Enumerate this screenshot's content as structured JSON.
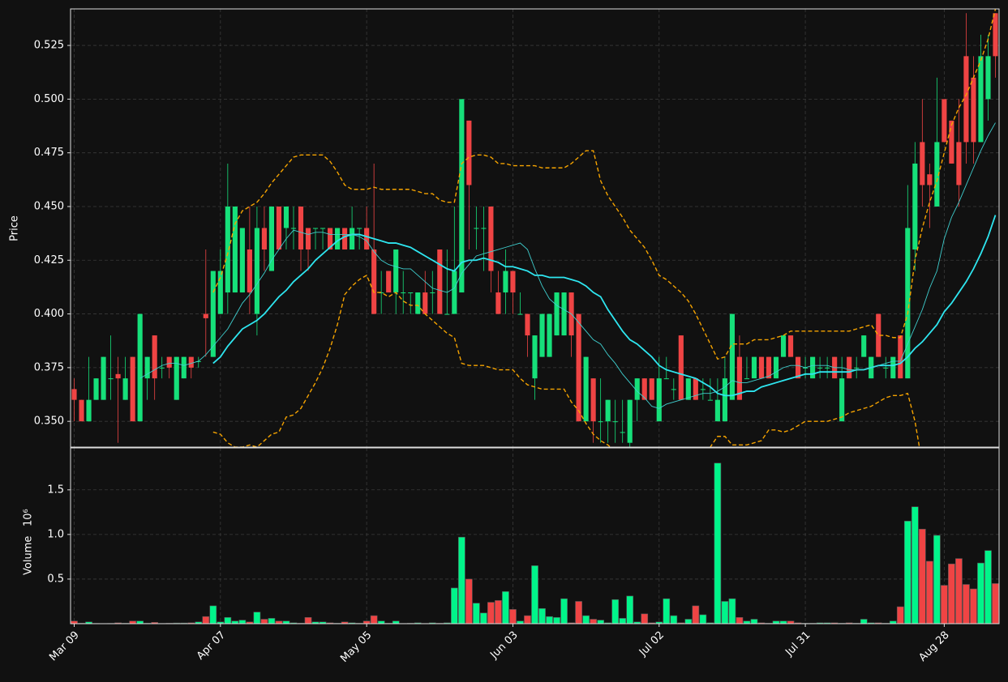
{
  "chart_data": {
    "type": "candlestick",
    "ylabel": "Price",
    "volume_ylabel": "Volume",
    "volume_offset": "10⁶",
    "grid": true,
    "up_color": "#16e07a",
    "down_color": "#ef4444",
    "volume_up_color": "#00f58a",
    "ylim": [
      0.338,
      0.542
    ],
    "yticks": [
      {
        "value": 0.35,
        "label": "0.350"
      },
      0.375,
      {
        "value": 0.4,
        "label": "0.400"
      },
      0.425,
      {
        "value": 0.45,
        "label": "0.450"
      },
      0.475,
      {
        "value": 0.5,
        "label": "0.500"
      },
      0.525
    ],
    "volume_ylim": [
      0,
      1970000
    ],
    "volume_yticks": [
      {
        "value": 500000,
        "label": "0.5"
      },
      {
        "value": 1000000,
        "label": "1.0"
      },
      {
        "value": 1500000,
        "label": "1.5"
      }
    ],
    "categories": [
      "Mar 09",
      null,
      null,
      null,
      null,
      null,
      null,
      null,
      null,
      null,
      null,
      null,
      null,
      null,
      null,
      null,
      null,
      null,
      null,
      null,
      "Apr 07",
      null,
      null,
      null,
      null,
      null,
      null,
      null,
      null,
      null,
      null,
      null,
      null,
      null,
      null,
      null,
      null,
      null,
      null,
      null,
      "May 05",
      null,
      null,
      null,
      null,
      null,
      null,
      null,
      null,
      null,
      null,
      null,
      null,
      null,
      null,
      null,
      null,
      null,
      null,
      null,
      "Jun 03",
      null,
      null,
      null,
      null,
      null,
      null,
      null,
      null,
      null,
      null,
      null,
      null,
      null,
      null,
      null,
      null,
      null,
      null,
      null,
      "Jul 02",
      null,
      null,
      null,
      null,
      null,
      null,
      null,
      null,
      null,
      null,
      null,
      null,
      null,
      null,
      null,
      null,
      null,
      null,
      null,
      "Jul 31",
      null,
      null,
      null,
      null,
      null,
      null,
      null,
      null,
      null,
      null,
      null,
      null,
      null,
      null,
      null,
      null,
      null,
      null,
      "Aug 28",
      null,
      null,
      null,
      null,
      null,
      null,
      null
    ],
    "open": [
      0.365,
      0.36,
      0.35,
      0.36,
      0.36,
      0.37,
      0.372,
      0.36,
      0.38,
      0.35,
      0.37,
      0.39,
      0.375,
      0.38,
      0.36,
      0.37,
      0.38,
      0.378,
      0.4,
      0.38,
      0.4,
      0.41,
      0.41,
      0.41,
      0.43,
      0.4,
      0.44,
      0.42,
      0.45,
      0.44,
      0.44,
      0.45,
      0.44,
      0.44,
      0.44,
      0.44,
      0.43,
      0.44,
      0.43,
      0.44,
      0.44,
      0.43,
      0.41,
      0.42,
      0.41,
      0.41,
      0.41,
      0.4,
      0.41,
      0.41,
      0.43,
      0.4,
      0.4,
      0.41,
      0.49,
      0.44,
      0.44,
      0.45,
      0.41,
      0.41,
      0.42,
      0.4,
      0.4,
      0.37,
      0.38,
      0.38,
      0.39,
      0.39,
      0.41,
      0.4,
      0.35,
      0.37,
      0.35,
      0.35,
      0.35,
      0.345,
      0.34,
      0.36,
      0.37,
      0.37,
      0.35,
      0.37,
      0.365,
      0.39,
      0.36,
      0.37,
      0.365,
      0.36,
      0.35,
      0.35,
      0.36,
      0.38,
      0.37,
      0.37,
      0.38,
      0.38,
      0.37,
      0.38,
      0.39,
      0.38,
      0.375,
      0.37,
      0.375,
      0.375,
      0.38,
      0.35,
      0.38,
      0.375,
      0.38,
      0.37,
      0.4,
      0.375,
      0.37,
      0.39,
      0.37,
      0.43,
      0.48,
      0.465,
      0.45,
      0.5,
      0.49,
      0.48,
      0.52,
      0.51,
      0.48,
      0.5,
      0.54
    ],
    "high": [
      0.37,
      0.36,
      0.38,
      0.37,
      0.38,
      0.39,
      0.38,
      0.38,
      0.38,
      0.4,
      0.38,
      0.39,
      0.38,
      0.38,
      0.38,
      0.38,
      0.38,
      0.38,
      0.43,
      0.42,
      0.43,
      0.47,
      0.45,
      0.44,
      0.45,
      0.45,
      0.45,
      0.45,
      0.45,
      0.45,
      0.45,
      0.45,
      0.44,
      0.44,
      0.44,
      0.44,
      0.44,
      0.44,
      0.45,
      0.44,
      0.45,
      0.47,
      0.42,
      0.42,
      0.43,
      0.42,
      0.41,
      0.41,
      0.42,
      0.42,
      0.43,
      0.43,
      0.45,
      0.5,
      0.49,
      0.45,
      0.45,
      0.45,
      0.42,
      0.43,
      0.42,
      0.41,
      0.4,
      0.39,
      0.4,
      0.4,
      0.41,
      0.41,
      0.41,
      0.4,
      0.38,
      0.37,
      0.37,
      0.36,
      0.36,
      0.36,
      0.36,
      0.37,
      0.37,
      0.37,
      0.38,
      0.38,
      0.37,
      0.39,
      0.37,
      0.37,
      0.37,
      0.37,
      0.37,
      0.38,
      0.4,
      0.39,
      0.38,
      0.38,
      0.38,
      0.38,
      0.38,
      0.39,
      0.39,
      0.38,
      0.38,
      0.38,
      0.38,
      0.38,
      0.38,
      0.38,
      0.38,
      0.38,
      0.39,
      0.38,
      0.4,
      0.38,
      0.38,
      0.39,
      0.46,
      0.48,
      0.5,
      0.47,
      0.51,
      0.5,
      0.49,
      0.5,
      0.54,
      0.52,
      0.53,
      0.53,
      0.54
    ],
    "low": [
      0.35,
      0.35,
      0.35,
      0.36,
      0.36,
      0.36,
      0.34,
      0.36,
      0.35,
      0.35,
      0.36,
      0.36,
      0.37,
      0.37,
      0.36,
      0.37,
      0.37,
      0.375,
      0.38,
      0.38,
      0.4,
      0.4,
      0.41,
      0.41,
      0.4,
      0.39,
      0.42,
      0.42,
      0.43,
      0.43,
      0.43,
      0.42,
      0.42,
      0.43,
      0.43,
      0.43,
      0.43,
      0.43,
      0.43,
      0.43,
      0.43,
      0.4,
      0.4,
      0.41,
      0.4,
      0.4,
      0.4,
      0.4,
      0.4,
      0.4,
      0.4,
      0.4,
      0.4,
      0.41,
      0.43,
      0.43,
      0.42,
      0.41,
      0.4,
      0.4,
      0.4,
      0.4,
      0.38,
      0.36,
      0.38,
      0.38,
      0.39,
      0.39,
      0.38,
      0.35,
      0.35,
      0.34,
      0.34,
      0.34,
      0.34,
      0.34,
      0.33,
      0.35,
      0.36,
      0.36,
      0.35,
      0.37,
      0.36,
      0.36,
      0.36,
      0.36,
      0.36,
      0.36,
      0.35,
      0.35,
      0.36,
      0.36,
      0.37,
      0.37,
      0.37,
      0.37,
      0.37,
      0.38,
      0.38,
      0.37,
      0.37,
      0.37,
      0.37,
      0.37,
      0.37,
      0.35,
      0.37,
      0.37,
      0.38,
      0.37,
      0.38,
      0.37,
      0.37,
      0.37,
      0.37,
      0.42,
      0.45,
      0.44,
      0.45,
      0.48,
      0.47,
      0.45,
      0.47,
      0.47,
      0.48,
      0.49,
      0.51
    ],
    "close": [
      0.36,
      0.35,
      0.36,
      0.37,
      0.38,
      0.37,
      0.37,
      0.37,
      0.35,
      0.4,
      0.38,
      0.37,
      0.375,
      0.375,
      0.38,
      0.38,
      0.375,
      0.378,
      0.398,
      0.42,
      0.42,
      0.45,
      0.45,
      0.44,
      0.41,
      0.44,
      0.43,
      0.45,
      0.43,
      0.45,
      0.44,
      0.43,
      0.43,
      0.44,
      0.44,
      0.43,
      0.44,
      0.43,
      0.44,
      0.44,
      0.43,
      0.4,
      0.41,
      0.41,
      0.43,
      0.41,
      0.41,
      0.41,
      0.4,
      0.41,
      0.4,
      0.4,
      0.42,
      0.5,
      0.46,
      0.44,
      0.44,
      0.42,
      0.4,
      0.42,
      0.41,
      0.4,
      0.39,
      0.39,
      0.4,
      0.4,
      0.41,
      0.41,
      0.39,
      0.35,
      0.38,
      0.35,
      0.35,
      0.36,
      0.35,
      0.345,
      0.36,
      0.37,
      0.36,
      0.36,
      0.37,
      0.37,
      0.365,
      0.36,
      0.37,
      0.36,
      0.365,
      0.36,
      0.36,
      0.37,
      0.4,
      0.36,
      0.37,
      0.38,
      0.37,
      0.37,
      0.38,
      0.39,
      0.38,
      0.37,
      0.375,
      0.38,
      0.375,
      0.375,
      0.37,
      0.37,
      0.37,
      0.375,
      0.39,
      0.38,
      0.38,
      0.375,
      0.38,
      0.37,
      0.44,
      0.47,
      0.46,
      0.46,
      0.48,
      0.48,
      0.47,
      0.46,
      0.48,
      0.48,
      0.52,
      0.52,
      0.52
    ],
    "volume": [
      30000,
      5000,
      20000,
      3000,
      2000,
      3000,
      10000,
      5000,
      30000,
      30000,
      5000,
      15000,
      3000,
      5000,
      8000,
      8000,
      10000,
      20000,
      80000,
      200000,
      20000,
      70000,
      30000,
      40000,
      20000,
      130000,
      50000,
      60000,
      30000,
      30000,
      10000,
      5000,
      70000,
      20000,
      20000,
      10000,
      5000,
      20000,
      10000,
      5000,
      30000,
      90000,
      30000,
      5000,
      30000,
      3000,
      5000,
      10000,
      3000,
      10000,
      5000,
      10000,
      400000,
      970000,
      500000,
      230000,
      120000,
      240000,
      260000,
      360000,
      160000,
      30000,
      90000,
      650000,
      170000,
      80000,
      70000,
      280000,
      10000,
      250000,
      90000,
      50000,
      40000,
      10000,
      270000,
      60000,
      310000,
      20000,
      110000,
      10000,
      20000,
      280000,
      90000,
      10000,
      50000,
      200000,
      100000,
      10000,
      1800000,
      250000,
      280000,
      70000,
      30000,
      50000,
      10000,
      5000,
      30000,
      30000,
      30000,
      10000,
      5000,
      5000,
      10000,
      10000,
      10000,
      5000,
      10000,
      5000,
      50000,
      10000,
      10000,
      5000,
      30000,
      190000,
      1150000,
      1310000,
      1060000,
      700000,
      990000,
      430000,
      670000,
      730000,
      440000,
      390000,
      680000,
      820000,
      450000
    ],
    "overlays": [
      {
        "color": "#2ee6f0",
        "linewidth": 1.8,
        "dash": false,
        "values": [
          null,
          null,
          null,
          null,
          null,
          null,
          null,
          null,
          null,
          null,
          null,
          null,
          null,
          null,
          null,
          null,
          null,
          null,
          null,
          0.377,
          0.38,
          0.385,
          0.389,
          0.393,
          0.395,
          0.397,
          0.4,
          0.404,
          0.408,
          0.411,
          0.415,
          0.418,
          0.421,
          0.425,
          0.428,
          0.431,
          0.434,
          0.436,
          0.437,
          0.437,
          0.436,
          0.435,
          0.434,
          0.433,
          0.433,
          0.432,
          0.431,
          0.429,
          0.427,
          0.425,
          0.423,
          0.421,
          0.42,
          0.424,
          0.425,
          0.425,
          0.426,
          0.425,
          0.424,
          0.422,
          0.422,
          0.421,
          0.42,
          0.418,
          0.418,
          0.417,
          0.417,
          0.417,
          0.416,
          0.415,
          0.413,
          0.41,
          0.408,
          0.402,
          0.397,
          0.392,
          0.388,
          0.386,
          0.383,
          0.38,
          0.376,
          0.374,
          0.373,
          0.372,
          0.371,
          0.37,
          0.368,
          0.366,
          0.363,
          0.362,
          0.362,
          0.363,
          0.364,
          0.364,
          0.366,
          0.367,
          0.368,
          0.369,
          0.37,
          0.371,
          0.372,
          0.372,
          0.373,
          0.373,
          0.373,
          0.373,
          0.373,
          0.374,
          0.374,
          0.375,
          0.376,
          0.376,
          0.376,
          0.377,
          0.38,
          0.384,
          0.387,
          0.391,
          0.395,
          0.401,
          0.405,
          0.41,
          0.415,
          0.421,
          0.428,
          0.436,
          0.446
        ]
      },
      {
        "color": "#3fd0d0",
        "linewidth": 0.9,
        "dash": false,
        "values": [
          null,
          null,
          null,
          null,
          null,
          null,
          null,
          null,
          null,
          0.37,
          0.372,
          0.374,
          0.376,
          0.377,
          0.377,
          0.376,
          0.377,
          0.378,
          0.381,
          0.385,
          0.389,
          0.393,
          0.399,
          0.405,
          0.409,
          0.414,
          0.419,
          0.425,
          0.43,
          0.435,
          0.439,
          0.438,
          0.437,
          0.438,
          0.438,
          0.437,
          0.437,
          0.437,
          0.437,
          0.436,
          0.434,
          0.429,
          0.425,
          0.423,
          0.422,
          0.421,
          0.421,
          0.418,
          0.415,
          0.412,
          0.411,
          0.41,
          0.412,
          0.419,
          0.423,
          0.427,
          0.428,
          0.429,
          0.43,
          0.431,
          0.432,
          0.433,
          0.43,
          0.421,
          0.413,
          0.407,
          0.404,
          0.402,
          0.4,
          0.396,
          0.392,
          0.388,
          0.386,
          0.381,
          0.377,
          0.372,
          0.368,
          0.364,
          0.361,
          0.357,
          0.356,
          0.358,
          0.359,
          0.36,
          0.361,
          0.362,
          0.363,
          0.363,
          0.364,
          0.366,
          0.369,
          0.368,
          0.368,
          0.369,
          0.37,
          0.371,
          0.373,
          0.375,
          0.376,
          0.376,
          0.375,
          0.376,
          0.376,
          0.376,
          0.375,
          0.375,
          0.374,
          0.374,
          0.374,
          0.375,
          0.376,
          0.377,
          0.378,
          0.378,
          0.386,
          0.394,
          0.402,
          0.412,
          0.42,
          0.435,
          0.445,
          0.452,
          0.46,
          0.468,
          0.476,
          0.483,
          0.489
        ]
      },
      {
        "color": "#f5a300",
        "linewidth": 1.4,
        "dash": true,
        "values": [
          null,
          null,
          null,
          null,
          null,
          null,
          null,
          null,
          null,
          null,
          null,
          null,
          null,
          null,
          null,
          null,
          null,
          null,
          null,
          0.41,
          0.417,
          0.428,
          0.442,
          0.448,
          0.45,
          0.452,
          0.456,
          0.461,
          0.465,
          0.469,
          0.473,
          0.474,
          0.474,
          0.474,
          0.474,
          0.471,
          0.466,
          0.46,
          0.458,
          0.458,
          0.458,
          0.459,
          0.458,
          0.458,
          0.458,
          0.458,
          0.458,
          0.457,
          0.456,
          0.456,
          0.453,
          0.452,
          0.452,
          0.47,
          0.473,
          0.474,
          0.474,
          0.473,
          0.47,
          0.47,
          0.469,
          0.469,
          0.469,
          0.469,
          0.468,
          0.468,
          0.468,
          0.468,
          0.47,
          0.473,
          0.476,
          0.476,
          0.462,
          0.455,
          0.45,
          0.445,
          0.439,
          0.435,
          0.431,
          0.425,
          0.418,
          0.416,
          0.413,
          0.41,
          0.406,
          0.4,
          0.393,
          0.386,
          0.379,
          0.38,
          0.386,
          0.386,
          0.386,
          0.388,
          0.388,
          0.388,
          0.389,
          0.39,
          0.392,
          0.392,
          0.392,
          0.392,
          0.392,
          0.392,
          0.392,
          0.392,
          0.392,
          0.393,
          0.394,
          0.395,
          0.39,
          0.39,
          0.389,
          0.389,
          0.4,
          0.425,
          0.44,
          0.452,
          0.462,
          0.475,
          0.488,
          0.496,
          0.502,
          0.51,
          0.518,
          0.528,
          0.542
        ]
      },
      {
        "color": "#f5a300",
        "linewidth": 1.4,
        "dash": true,
        "values": [
          null,
          null,
          null,
          null,
          null,
          null,
          null,
          null,
          null,
          null,
          null,
          null,
          null,
          null,
          null,
          null,
          null,
          null,
          null,
          0.345,
          0.344,
          0.34,
          0.338,
          0.338,
          0.339,
          0.338,
          0.341,
          0.344,
          0.345,
          0.352,
          0.353,
          0.356,
          0.362,
          0.368,
          0.375,
          0.384,
          0.395,
          0.409,
          0.413,
          0.416,
          0.418,
          0.41,
          0.41,
          0.408,
          0.41,
          0.406,
          0.404,
          0.404,
          0.4,
          0.397,
          0.394,
          0.391,
          0.389,
          0.377,
          0.376,
          0.376,
          0.376,
          0.375,
          0.374,
          0.374,
          0.374,
          0.37,
          0.367,
          0.366,
          0.365,
          0.365,
          0.365,
          0.365,
          0.359,
          0.355,
          0.349,
          0.344,
          0.341,
          0.339,
          0.336,
          0.33,
          0.325,
          0.32,
          0.318,
          0.315,
          0.314,
          0.312,
          0.312,
          0.313,
          0.318,
          0.325,
          0.333,
          0.338,
          0.343,
          0.343,
          0.339,
          0.339,
          0.339,
          0.34,
          0.341,
          0.346,
          0.346,
          0.345,
          0.346,
          0.348,
          0.35,
          0.35,
          0.35,
          0.35,
          0.351,
          0.352,
          0.354,
          0.355,
          0.356,
          0.357,
          0.359,
          0.361,
          0.362,
          0.362,
          0.363,
          0.35,
          0.33,
          0.32,
          0.31,
          0.3,
          0.29,
          0.285,
          0.28,
          0.275,
          0.27,
          0.268,
          0.265
        ]
      }
    ]
  }
}
